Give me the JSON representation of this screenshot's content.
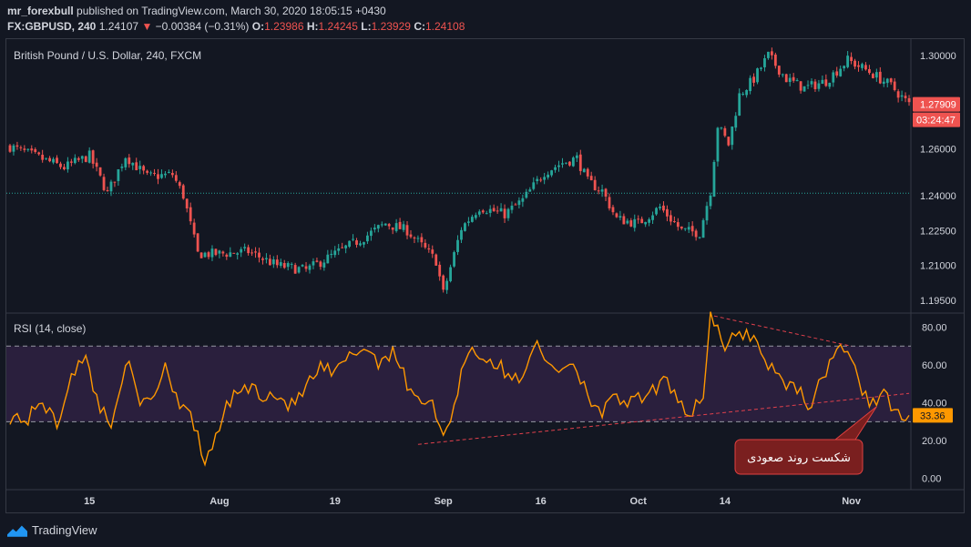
{
  "header": {
    "author": "mr_forexbull",
    "published_text": "published on TradingView.com, March 30, 2020 18:05:15 +0430",
    "symbol_interval": "FX:GBPUSD, 240",
    "last": "1.24107",
    "change_arrow": "▼",
    "change": "−0.00384 (−0.31%)",
    "o_label": "O:",
    "o": "1.23986",
    "h_label": "H:",
    "h": "1.24245",
    "l_label": "L:",
    "l": "1.23929",
    "c_label": "C:",
    "c": "1.24108"
  },
  "colors": {
    "background": "#131722",
    "up": "#26a69a",
    "down": "#ef5350",
    "rsi_line": "#ff9800",
    "rsi_band": "#2a1f3d",
    "grid": "#1e222d",
    "annotation_fill": "#7a1f1f",
    "annotation_border": "#e04040",
    "trendline": "#e0404c",
    "last_line": "#26a69a"
  },
  "chart_data": [
    {
      "type": "candlestick",
      "title": "British Pound / U.S. Dollar, 240, FXCM",
      "ylim": [
        1.19,
        1.307
      ],
      "y_ticks": [
        "1.30000",
        "1.26000",
        "1.24000",
        "1.22500",
        "1.21000",
        "1.19500"
      ],
      "y_tick_values": [
        1.3,
        1.26,
        1.24,
        1.225,
        1.21,
        1.195
      ],
      "x_ticks": [
        "15",
        "Aug",
        "19",
        "Sep",
        "16",
        "Oct",
        "14",
        "Nov"
      ],
      "x_tick_index": [
        22,
        58,
        90,
        120,
        147,
        174,
        198,
        233
      ],
      "n_bars": 250,
      "close_path_anchors": [
        [
          0,
          1.261
        ],
        [
          10,
          1.255
        ],
        [
          15,
          1.252
        ],
        [
          22,
          1.257
        ],
        [
          27,
          1.241
        ],
        [
          32,
          1.257
        ],
        [
          38,
          1.248
        ],
        [
          45,
          1.249
        ],
        [
          48,
          1.24
        ],
        [
          52,
          1.215
        ],
        [
          58,
          1.215
        ],
        [
          66,
          1.216
        ],
        [
          74,
          1.21
        ],
        [
          82,
          1.208
        ],
        [
          90,
          1.215
        ],
        [
          98,
          1.222
        ],
        [
          104,
          1.228
        ],
        [
          110,
          1.225
        ],
        [
          118,
          1.212
        ],
        [
          120,
          1.198
        ],
        [
          125,
          1.226
        ],
        [
          130,
          1.235
        ],
        [
          137,
          1.232
        ],
        [
          142,
          1.238
        ],
        [
          148,
          1.25
        ],
        [
          153,
          1.254
        ],
        [
          157,
          1.256
        ],
        [
          160,
          1.246
        ],
        [
          164,
          1.242
        ],
        [
          168,
          1.23
        ],
        [
          174,
          1.228
        ],
        [
          180,
          1.235
        ],
        [
          186,
          1.225
        ],
        [
          191,
          1.224
        ],
        [
          194,
          1.242
        ],
        [
          196,
          1.27
        ],
        [
          199,
          1.262
        ],
        [
          202,
          1.283
        ],
        [
          206,
          1.29
        ],
        [
          210,
          1.3
        ],
        [
          215,
          1.29
        ],
        [
          220,
          1.286
        ],
        [
          226,
          1.289
        ],
        [
          232,
          1.298
        ],
        [
          238,
          1.293
        ],
        [
          244,
          1.287
        ],
        [
          249,
          1.279
        ]
      ],
      "last_price": 1.27909,
      "last_price_label": "1.27909",
      "countdown": "03:24:47",
      "dotted_level": 1.241
    },
    {
      "type": "line",
      "title": "RSI (14, close)",
      "ylim": [
        -5,
        87
      ],
      "y_ticks": [
        "80.00",
        "60.00",
        "40.00",
        "20.00",
        "0.00"
      ],
      "y_tick_values": [
        80,
        60,
        40,
        20,
        0
      ],
      "band": [
        30,
        70
      ],
      "last_value": 33.36,
      "last_value_label": "33.36",
      "rsi_anchors": [
        [
          0,
          33
        ],
        [
          5,
          31
        ],
        [
          9,
          42
        ],
        [
          13,
          27
        ],
        [
          17,
          57
        ],
        [
          21,
          62
        ],
        [
          25,
          38
        ],
        [
          28,
          27
        ],
        [
          32,
          64
        ],
        [
          36,
          38
        ],
        [
          40,
          45
        ],
        [
          43,
          60
        ],
        [
          47,
          40
        ],
        [
          50,
          38
        ],
        [
          53,
          12
        ],
        [
          55,
          10
        ],
        [
          58,
          28
        ],
        [
          62,
          45
        ],
        [
          66,
          48
        ],
        [
          70,
          45
        ],
        [
          74,
          44
        ],
        [
          78,
          38
        ],
        [
          82,
          48
        ],
        [
          86,
          58
        ],
        [
          90,
          55
        ],
        [
          94,
          64
        ],
        [
          98,
          70
        ],
        [
          102,
          62
        ],
        [
          106,
          68
        ],
        [
          110,
          50
        ],
        [
          114,
          42
        ],
        [
          118,
          36
        ],
        [
          120,
          20
        ],
        [
          123,
          40
        ],
        [
          127,
          70
        ],
        [
          131,
          64
        ],
        [
          135,
          60
        ],
        [
          139,
          52
        ],
        [
          142,
          55
        ],
        [
          145,
          72
        ],
        [
          148,
          62
        ],
        [
          152,
          58
        ],
        [
          156,
          62
        ],
        [
          160,
          45
        ],
        [
          164,
          35
        ],
        [
          168,
          42
        ],
        [
          172,
          40
        ],
        [
          176,
          42
        ],
        [
          180,
          50
        ],
        [
          184,
          48
        ],
        [
          188,
          33
        ],
        [
          192,
          45
        ],
        [
          194,
          86
        ],
        [
          198,
          68
        ],
        [
          202,
          78
        ],
        [
          206,
          75
        ],
        [
          210,
          60
        ],
        [
          214,
          52
        ],
        [
          218,
          48
        ],
        [
          222,
          38
        ],
        [
          226,
          58
        ],
        [
          230,
          72
        ],
        [
          234,
          56
        ],
        [
          238,
          40
        ],
        [
          242,
          46
        ],
        [
          245,
          33
        ],
        [
          249,
          30
        ]
      ],
      "trendlines": [
        {
          "from": [
            113,
            18
          ],
          "to": [
            249,
            45
          ]
        },
        {
          "from": [
            195,
            86
          ],
          "to": [
            233,
            70
          ]
        }
      ],
      "annotation": "شکست روند صعودی"
    }
  ],
  "footer": {
    "brand": "TradingView"
  }
}
